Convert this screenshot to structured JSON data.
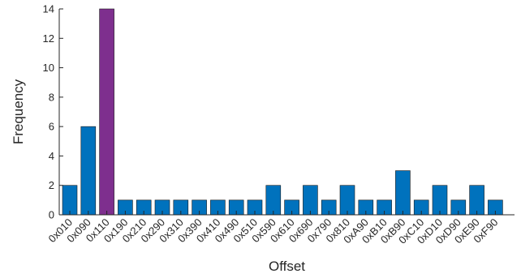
{
  "chart_data": {
    "type": "bar",
    "title": "",
    "xlabel": "Offset",
    "ylabel": "Frequency",
    "ylim": [
      0,
      14
    ],
    "yticks": [
      0,
      2,
      4,
      6,
      8,
      10,
      12,
      14
    ],
    "grid": false,
    "legend": "none",
    "categories": [
      "0x010",
      "0x090",
      "0x110",
      "0x190",
      "0x210",
      "0x290",
      "0x310",
      "0x390",
      "0x410",
      "0x490",
      "0x510",
      "0x590",
      "0x610",
      "0x690",
      "0x790",
      "0x810",
      "0xA90",
      "0xB10",
      "0xB90",
      "0xC10",
      "0xD10",
      "0xD90",
      "0xE90",
      "0xF90"
    ],
    "values": [
      2,
      6,
      14,
      1,
      1,
      1,
      1,
      1,
      1,
      1,
      1,
      2,
      1,
      2,
      1,
      2,
      1,
      1,
      3,
      1,
      2,
      1,
      2,
      1
    ],
    "bar_color": "#0072BD",
    "highlight_index": 2,
    "highlight_color": "#7E2F8E"
  }
}
